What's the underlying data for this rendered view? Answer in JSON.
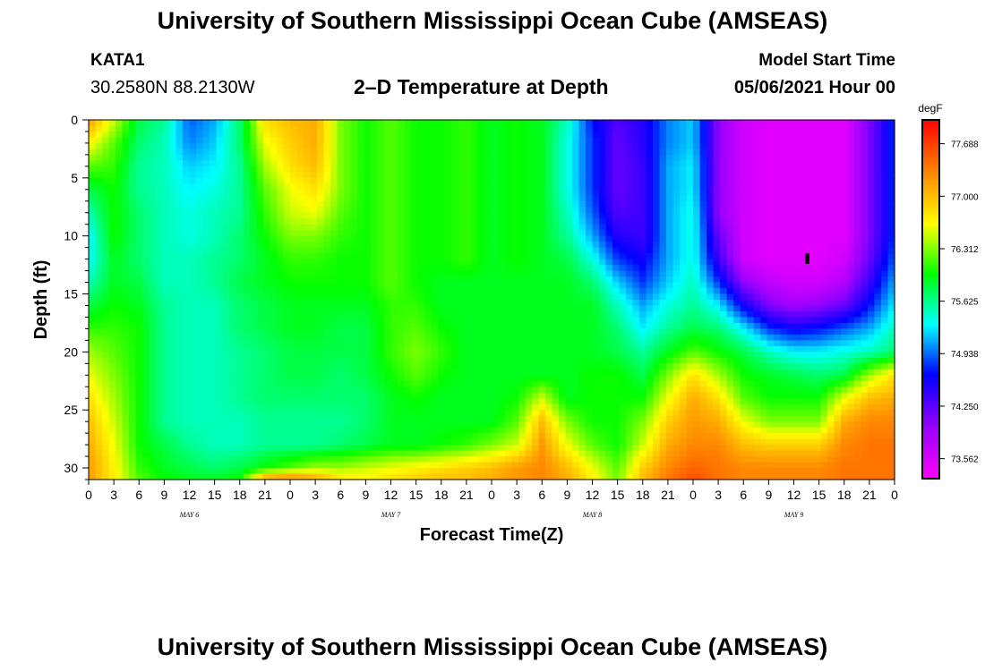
{
  "header": {
    "title": "University of Southern Mississippi Ocean Cube (AMSEAS)",
    "footer_title": "University of Southern Mississippi Ocean Cube (AMSEAS)",
    "station_id": "KATA1",
    "station_coords": "30.2580N  88.2130W",
    "plot_title": "2–D Temperature at Depth",
    "model_start_label": "Model Start Time",
    "model_start_value": "05/06/2021 Hour 00"
  },
  "chart_data": {
    "type": "heatmap",
    "title": "2–D Temperature at Depth",
    "xlabel": "Forecast Time(Z)",
    "ylabel": "Depth (ft)",
    "x_unit": "hours since model start",
    "xlim": [
      0,
      96
    ],
    "ylim": [
      0,
      31
    ],
    "y_inverted": true,
    "x_tick_labels": [
      "0",
      "3",
      "6",
      "9",
      "12",
      "15",
      "18",
      "21",
      "0",
      "3",
      "6",
      "9",
      "12",
      "15",
      "18",
      "21",
      "0",
      "3",
      "6",
      "9",
      "12",
      "15",
      "18",
      "21",
      "0",
      "3",
      "6",
      "9",
      "12",
      "15",
      "18",
      "21",
      "0"
    ],
    "x_day_labels": [
      {
        "label": "MAY  6",
        "hour": 12
      },
      {
        "label": "MAY  7",
        "hour": 36
      },
      {
        "label": "MAY  8",
        "hour": 60
      },
      {
        "label": "MAY  9",
        "hour": 84
      }
    ],
    "y_ticks": [
      0,
      5,
      10,
      15,
      20,
      25,
      30
    ],
    "colorbar": {
      "unit": "degF",
      "min": 73.3,
      "max": 78.0,
      "tick_labels": [
        "77.688",
        "77.000",
        "76.312",
        "75.625",
        "74.938",
        "74.250",
        "73.562"
      ],
      "tick_values": [
        77.688,
        77.0,
        76.312,
        75.625,
        74.938,
        74.25,
        73.562
      ]
    },
    "x": [
      0,
      3,
      6,
      9,
      12,
      15,
      18,
      21,
      24,
      27,
      30,
      33,
      36,
      39,
      42,
      45,
      48,
      51,
      54,
      57,
      60,
      63,
      66,
      69,
      72,
      75,
      78,
      81,
      84,
      87,
      90,
      93,
      96
    ],
    "y": [
      0,
      2,
      4,
      6,
      8,
      10,
      12,
      14,
      16,
      18,
      20,
      22,
      24,
      26,
      28,
      30,
      31
    ],
    "z": [
      [
        77.2,
        76.5,
        75.8,
        75.6,
        74.9,
        75.1,
        75.7,
        76.8,
        77.0,
        77.1,
        76.3,
        76.0,
        76.2,
        76.0,
        76.0,
        76.1,
        75.9,
        76.0,
        75.9,
        75.5,
        74.7,
        74.3,
        74.5,
        75.0,
        75.2,
        74.0,
        73.6,
        73.5,
        73.5,
        73.5,
        73.5,
        74.1,
        74.8
      ],
      [
        76.7,
        76.2,
        75.7,
        75.5,
        75.0,
        75.2,
        75.7,
        76.6,
        76.9,
        77.1,
        76.3,
        76.0,
        76.2,
        76.0,
        76.0,
        76.1,
        75.9,
        76.0,
        75.9,
        75.4,
        74.8,
        74.2,
        74.5,
        75.0,
        75.2,
        74.0,
        73.6,
        73.5,
        73.5,
        73.5,
        73.5,
        74.1,
        74.8
      ],
      [
        76.2,
        76.1,
        75.6,
        75.5,
        75.2,
        75.3,
        75.6,
        76.4,
        76.8,
        77.0,
        76.3,
        76.0,
        76.2,
        76.0,
        76.0,
        76.1,
        75.9,
        76.0,
        75.9,
        75.4,
        74.8,
        74.2,
        74.4,
        75.1,
        75.3,
        74.0,
        73.6,
        73.5,
        73.5,
        73.5,
        73.5,
        74.1,
        74.8
      ],
      [
        75.8,
        76.0,
        75.6,
        75.5,
        75.3,
        75.4,
        75.6,
        76.2,
        76.6,
        76.8,
        76.3,
        76.0,
        76.2,
        76.0,
        76.0,
        76.1,
        75.9,
        76.0,
        75.9,
        75.4,
        74.8,
        74.2,
        74.4,
        75.1,
        75.3,
        74.0,
        73.6,
        73.5,
        73.5,
        73.5,
        73.5,
        74.1,
        74.8
      ],
      [
        75.5,
        76.0,
        75.7,
        75.5,
        75.4,
        75.5,
        75.6,
        76.1,
        76.5,
        76.6,
        76.2,
        76.0,
        76.2,
        76.0,
        76.0,
        76.1,
        75.9,
        76.0,
        75.9,
        75.5,
        74.9,
        74.3,
        74.4,
        75.1,
        75.4,
        74.0,
        73.6,
        73.5,
        73.5,
        73.5,
        73.5,
        74.1,
        74.8
      ],
      [
        75.3,
        76.0,
        75.7,
        75.5,
        75.4,
        75.5,
        75.7,
        76.0,
        76.3,
        76.3,
        76.1,
        76.0,
        76.2,
        76.0,
        76.0,
        76.1,
        75.9,
        76.0,
        75.9,
        75.6,
        75.1,
        74.5,
        74.4,
        75.1,
        75.4,
        74.2,
        73.6,
        73.5,
        73.5,
        73.5,
        73.5,
        74.1,
        74.8
      ],
      [
        75.3,
        75.9,
        75.7,
        75.5,
        75.5,
        75.6,
        75.7,
        75.9,
        76.1,
        76.1,
        76.0,
        76.0,
        76.2,
        76.0,
        76.0,
        76.1,
        75.9,
        76.0,
        75.9,
        75.8,
        75.4,
        74.8,
        74.6,
        75.1,
        75.4,
        74.4,
        73.6,
        73.5,
        73.5,
        73.5,
        73.6,
        74.2,
        74.9
      ],
      [
        75.5,
        75.9,
        75.8,
        75.5,
        75.5,
        75.6,
        75.8,
        75.9,
        76.0,
        76.0,
        76.0,
        76.0,
        76.2,
        76.0,
        75.9,
        75.9,
        75.9,
        75.9,
        75.9,
        75.9,
        75.7,
        75.2,
        74.8,
        75.2,
        75.5,
        74.8,
        74.0,
        73.7,
        73.6,
        73.6,
        73.8,
        74.4,
        75.1
      ],
      [
        75.8,
        76.0,
        75.9,
        75.6,
        75.5,
        75.5,
        75.7,
        75.8,
        75.9,
        75.9,
        75.9,
        75.9,
        76.1,
        76.1,
        75.9,
        75.9,
        75.9,
        75.9,
        75.9,
        75.9,
        75.9,
        75.5,
        75.1,
        75.4,
        75.6,
        75.3,
        74.6,
        74.1,
        73.9,
        74.0,
        74.2,
        74.7,
        75.3
      ],
      [
        76.1,
        76.1,
        76.0,
        75.6,
        75.5,
        75.5,
        75.7,
        75.8,
        75.9,
        75.9,
        75.8,
        75.8,
        76.1,
        76.2,
        76.0,
        75.9,
        75.9,
        75.9,
        75.9,
        75.9,
        75.9,
        75.7,
        75.3,
        75.6,
        75.8,
        75.7,
        75.3,
        74.8,
        74.6,
        74.7,
        74.9,
        75.1,
        75.5
      ],
      [
        76.4,
        76.2,
        76.0,
        75.6,
        75.5,
        75.5,
        75.6,
        75.7,
        75.8,
        75.8,
        75.8,
        75.8,
        76.1,
        76.3,
        76.1,
        75.9,
        75.9,
        75.9,
        75.9,
        75.9,
        75.9,
        75.8,
        75.6,
        75.9,
        76.2,
        76.0,
        75.8,
        75.5,
        75.3,
        75.3,
        75.4,
        75.5,
        75.7
      ],
      [
        76.6,
        76.3,
        76.0,
        75.6,
        75.5,
        75.5,
        75.6,
        75.7,
        75.8,
        75.8,
        75.7,
        75.8,
        76.0,
        76.2,
        76.0,
        75.9,
        75.9,
        75.9,
        75.9,
        75.9,
        76.0,
        76.0,
        75.8,
        76.3,
        76.8,
        76.4,
        76.0,
        75.9,
        75.8,
        75.7,
        75.8,
        76.4,
        76.8
      ],
      [
        76.8,
        76.4,
        76.0,
        75.6,
        75.5,
        75.5,
        75.6,
        75.7,
        75.7,
        75.7,
        75.7,
        75.7,
        75.9,
        76.0,
        75.9,
        75.9,
        75.9,
        76.0,
        76.5,
        75.9,
        76.0,
        76.0,
        76.0,
        76.6,
        77.1,
        76.8,
        76.2,
        76.0,
        76.0,
        76.0,
        76.6,
        77.0,
        77.1
      ],
      [
        77.0,
        76.5,
        76.0,
        75.6,
        75.5,
        75.5,
        75.5,
        75.6,
        75.6,
        75.6,
        75.6,
        75.7,
        75.9,
        75.9,
        75.9,
        75.9,
        75.9,
        76.2,
        77.0,
        76.3,
        76.0,
        76.0,
        76.3,
        76.9,
        77.2,
        77.1,
        76.6,
        76.3,
        76.3,
        76.3,
        77.1,
        77.3,
        77.3
      ],
      [
        77.1,
        76.6,
        76.0,
        75.8,
        75.6,
        75.5,
        75.5,
        75.6,
        75.6,
        75.6,
        75.7,
        75.8,
        75.9,
        75.9,
        76.0,
        76.1,
        76.3,
        76.5,
        77.2,
        76.6,
        76.2,
        76.0,
        76.5,
        77.1,
        77.3,
        77.3,
        77.0,
        76.9,
        76.9,
        76.9,
        77.3,
        77.4,
        77.4
      ],
      [
        77.2,
        76.7,
        76.1,
        75.9,
        75.8,
        75.7,
        75.8,
        76.0,
        76.2,
        76.4,
        76.4,
        76.5,
        76.6,
        76.7,
        76.8,
        76.9,
        77.0,
        77.2,
        77.3,
        77.0,
        76.6,
        76.2,
        76.9,
        77.3,
        77.5,
        77.4,
        77.3,
        77.3,
        77.3,
        77.3,
        77.4,
        77.4,
        77.4
      ],
      [
        77.2,
        76.7,
        76.2,
        76.0,
        75.9,
        75.9,
        76.0,
        77.3,
        77.4,
        77.2,
        76.8,
        76.7,
        76.8,
        76.9,
        77.0,
        77.0,
        77.1,
        77.2,
        77.3,
        77.1,
        76.7,
        76.3,
        77.0,
        77.4,
        77.6,
        77.4,
        77.3,
        77.3,
        77.3,
        77.3,
        77.4,
        77.4,
        77.4
      ]
    ]
  }
}
